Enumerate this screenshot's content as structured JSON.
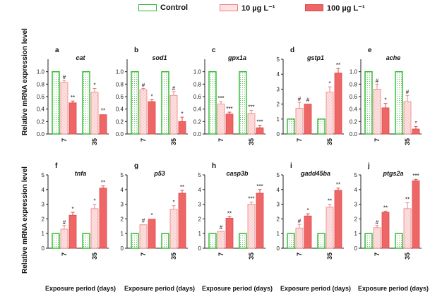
{
  "legend": {
    "control": "Control",
    "low": "10 µg L⁻¹",
    "high": "100 µg L⁻¹"
  },
  "colors": {
    "control_border": "#2fb82f",
    "low_fill": "#fde3e3",
    "low_border": "#f08080",
    "high_fill": "#ee6666",
    "high_border": "#d94a4a"
  },
  "axis_text": {
    "ylabel": "Relative mRNA expression level",
    "xlabel": "Exposure period (days)"
  },
  "chart_data": [
    {
      "type": "bar",
      "letter": "a",
      "title": "cat",
      "categories": [
        "7",
        "35"
      ],
      "ylim": [
        0,
        1.2
      ],
      "yticks": [
        0,
        0.2,
        0.4,
        0.6,
        0.8,
        1.0
      ],
      "yticklabels": [
        "0.0",
        "0.2",
        "0.4",
        "0.6",
        "0.8",
        "1.0"
      ],
      "series": [
        {
          "name": "Control",
          "values": [
            1.0,
            1.0
          ],
          "errors": [
            0.01,
            0.01
          ],
          "labels": [
            "",
            ""
          ]
        },
        {
          "name": "10 µg L⁻¹",
          "values": [
            0.83,
            0.67
          ],
          "errors": [
            0.03,
            0.06
          ],
          "labels": [
            "#",
            "*"
          ]
        },
        {
          "name": "100 µg L⁻¹",
          "values": [
            0.5,
            0.31
          ],
          "errors": [
            0.03,
            0.01
          ],
          "labels": [
            "**",
            "**"
          ]
        }
      ]
    },
    {
      "type": "bar",
      "letter": "b",
      "title": "sod1",
      "categories": [
        "7",
        "35"
      ],
      "ylim": [
        0,
        1.2
      ],
      "yticks": [
        0,
        0.2,
        0.4,
        0.6,
        0.8,
        1.0
      ],
      "yticklabels": [
        "0.0",
        "0.2",
        "0.4",
        "0.6",
        "0.8",
        "1.0"
      ],
      "series": [
        {
          "name": "Control",
          "values": [
            1.0,
            1.0
          ],
          "errors": [
            0.01,
            0.01
          ],
          "labels": [
            "",
            ""
          ]
        },
        {
          "name": "10 µg L⁻¹",
          "values": [
            0.71,
            0.62
          ],
          "errors": [
            0.02,
            0.06
          ],
          "labels": [
            "#",
            "#"
          ]
        },
        {
          "name": "100 µg L⁻¹",
          "values": [
            0.52,
            0.2
          ],
          "errors": [
            0.03,
            0.07
          ],
          "labels": [
            "*",
            "*"
          ]
        }
      ]
    },
    {
      "type": "bar",
      "letter": "c",
      "title": "gpx1a",
      "categories": [
        "7",
        "35"
      ],
      "ylim": [
        0,
        1.2
      ],
      "yticks": [
        0,
        0.2,
        0.4,
        0.6,
        0.8,
        1.0
      ],
      "yticklabels": [
        "0.0",
        "0.2",
        "0.4",
        "0.6",
        "0.8",
        "1.0"
      ],
      "series": [
        {
          "name": "Control",
          "values": [
            1.0,
            1.0
          ],
          "errors": [
            0.01,
            0.01
          ],
          "labels": [
            "",
            ""
          ]
        },
        {
          "name": "10 µg L⁻¹",
          "values": [
            0.48,
            0.33
          ],
          "errors": [
            0.04,
            0.05
          ],
          "labels": [
            "***",
            "***"
          ]
        },
        {
          "name": "100 µg L⁻¹",
          "values": [
            0.32,
            0.1
          ],
          "errors": [
            0.03,
            0.04
          ],
          "labels": [
            "***",
            "***"
          ]
        }
      ]
    },
    {
      "type": "bar",
      "letter": "d",
      "title": "gstp1",
      "categories": [
        "7",
        "35"
      ],
      "ylim": [
        0,
        5
      ],
      "yticks": [
        0,
        1,
        2,
        3,
        4,
        5
      ],
      "yticklabels": [
        "0",
        "1",
        "2",
        "3",
        "4",
        "5"
      ],
      "series": [
        {
          "name": "Control",
          "values": [
            1.0,
            1.0
          ],
          "errors": [
            0.02,
            0.02
          ],
          "labels": [
            "",
            ""
          ]
        },
        {
          "name": "10 µg L⁻¹",
          "values": [
            1.72,
            2.8
          ],
          "errors": [
            0.4,
            0.35
          ],
          "labels": [
            "#",
            "*"
          ]
        },
        {
          "name": "100 µg L⁻¹",
          "values": [
            2.0,
            4.08
          ],
          "errors": [
            0.05,
            0.3
          ],
          "labels": [
            "#",
            "**"
          ]
        }
      ]
    },
    {
      "type": "bar",
      "letter": "e",
      "title": "ache",
      "categories": [
        "7",
        "35"
      ],
      "ylim": [
        0,
        1.2
      ],
      "yticks": [
        0,
        0.2,
        0.4,
        0.6,
        0.8,
        1.0
      ],
      "yticklabels": [
        "0.0",
        "0.2",
        "0.4",
        "0.6",
        "0.8",
        "1.0"
      ],
      "series": [
        {
          "name": "Control",
          "values": [
            1.0,
            1.0
          ],
          "errors": [
            0.01,
            0.01
          ],
          "labels": [
            "",
            ""
          ]
        },
        {
          "name": "10 µg L⁻¹",
          "values": [
            0.72,
            0.52
          ],
          "errors": [
            0.08,
            0.1
          ],
          "labels": [
            "#",
            "#"
          ]
        },
        {
          "name": "100 µg L⁻¹",
          "values": [
            0.42,
            0.08
          ],
          "errors": [
            0.07,
            0.04
          ],
          "labels": [
            "*",
            "*"
          ]
        }
      ]
    },
    {
      "type": "bar",
      "letter": "f",
      "title": "tnfa",
      "categories": [
        "7",
        "35"
      ],
      "ylim": [
        0,
        5
      ],
      "yticks": [
        0,
        1,
        2,
        3,
        4,
        5
      ],
      "yticklabels": [
        "0",
        "1",
        "2",
        "3",
        "4",
        "5"
      ],
      "series": [
        {
          "name": "Control",
          "values": [
            1.0,
            1.0
          ],
          "errors": [
            0.02,
            0.02
          ],
          "labels": [
            "",
            ""
          ]
        },
        {
          "name": "10 µg L⁻¹",
          "values": [
            1.3,
            2.7
          ],
          "errors": [
            0.25,
            0.3
          ],
          "labels": [
            "#",
            "*"
          ]
        },
        {
          "name": "100 µg L⁻¹",
          "values": [
            2.25,
            4.1
          ],
          "errors": [
            0.2,
            0.15
          ],
          "labels": [
            "*",
            "**"
          ]
        }
      ]
    },
    {
      "type": "bar",
      "letter": "g",
      "title": "p53",
      "categories": [
        "7",
        "35"
      ],
      "ylim": [
        0,
        5
      ],
      "yticks": [
        0,
        1,
        2,
        3,
        4,
        5
      ],
      "yticklabels": [
        "0",
        "1",
        "2",
        "3",
        "4",
        "5"
      ],
      "series": [
        {
          "name": "Control",
          "values": [
            1.0,
            1.0
          ],
          "errors": [
            0.02,
            0.02
          ],
          "labels": [
            "",
            ""
          ]
        },
        {
          "name": "10 µg L⁻¹",
          "values": [
            1.6,
            2.65
          ],
          "errors": [
            0.05,
            0.25
          ],
          "labels": [
            "#",
            "*"
          ]
        },
        {
          "name": "100 µg L⁻¹",
          "values": [
            1.98,
            3.75
          ],
          "errors": [
            0.05,
            0.2
          ],
          "labels": [
            "*",
            "**"
          ]
        }
      ]
    },
    {
      "type": "bar",
      "letter": "h",
      "title": "casp3b",
      "categories": [
        "7",
        "35"
      ],
      "ylim": [
        0,
        5
      ],
      "yticks": [
        0,
        1,
        2,
        3,
        4,
        5
      ],
      "yticklabels": [
        "0",
        "1",
        "2",
        "3",
        "4",
        "5"
      ],
      "series": [
        {
          "name": "Control",
          "values": [
            1.0,
            1.0
          ],
          "errors": [
            0.02,
            0.02
          ],
          "labels": [
            "",
            ""
          ]
        },
        {
          "name": "10 µg L⁻¹",
          "values": [
            1.15,
            3.0
          ],
          "errors": [
            0.05,
            0.15
          ],
          "labels": [
            "#",
            "***"
          ]
        },
        {
          "name": "100 µg L⁻¹",
          "values": [
            2.05,
            3.75
          ],
          "errors": [
            0.1,
            0.25
          ],
          "labels": [
            "**",
            "***"
          ]
        }
      ]
    },
    {
      "type": "bar",
      "letter": "i",
      "title": "gadd45ba",
      "categories": [
        "7",
        "35"
      ],
      "ylim": [
        0,
        5
      ],
      "yticks": [
        0,
        1,
        2,
        3,
        4,
        5
      ],
      "yticklabels": [
        "0",
        "1",
        "2",
        "3",
        "4",
        "5"
      ],
      "series": [
        {
          "name": "Control",
          "values": [
            1.0,
            1.0
          ],
          "errors": [
            0.02,
            0.02
          ],
          "labels": [
            "",
            ""
          ]
        },
        {
          "name": "10 µg L⁻¹",
          "values": [
            1.38,
            2.8
          ],
          "errors": [
            0.25,
            0.2
          ],
          "labels": [
            "#",
            "**"
          ]
        },
        {
          "name": "100 µg L⁻¹",
          "values": [
            2.2,
            3.95
          ],
          "errors": [
            0.15,
            0.15
          ],
          "labels": [
            "*",
            "**"
          ]
        }
      ]
    },
    {
      "type": "bar",
      "letter": "j",
      "title": "ptgs2a",
      "categories": [
        "7",
        "35"
      ],
      "ylim": [
        0,
        5
      ],
      "yticks": [
        0,
        1,
        2,
        3,
        4,
        5
      ],
      "yticklabels": [
        "0",
        "1",
        "2",
        "3",
        "4",
        "5"
      ],
      "series": [
        {
          "name": "Control",
          "values": [
            1.0,
            1.0
          ],
          "errors": [
            0.02,
            0.02
          ],
          "labels": [
            "",
            ""
          ]
        },
        {
          "name": "10 µg L⁻¹",
          "values": [
            1.4,
            2.7
          ],
          "errors": [
            0.15,
            0.4
          ],
          "labels": [
            "#",
            "**"
          ]
        },
        {
          "name": "100 µg L⁻¹",
          "values": [
            2.45,
            4.6
          ],
          "errors": [
            0.08,
            0.1
          ],
          "labels": [
            "**",
            "***"
          ]
        }
      ]
    }
  ]
}
